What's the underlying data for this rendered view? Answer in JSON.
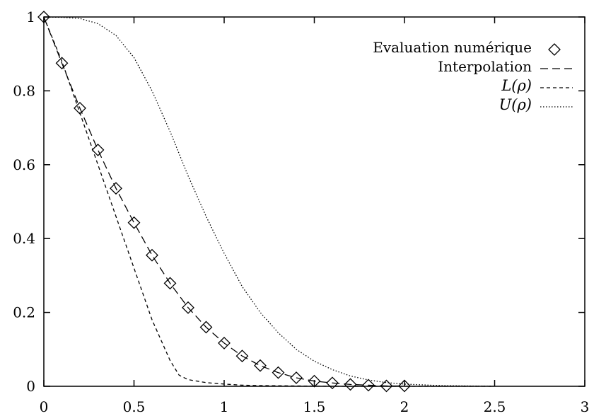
{
  "chart_data": {
    "type": "line",
    "title": "",
    "xlabel": "",
    "ylabel": "",
    "xlim": [
      0,
      3
    ],
    "ylim": [
      0,
      1
    ],
    "grid": false,
    "legend_position": "top-right",
    "x_ticks": [
      {
        "value": 0,
        "label": "0"
      },
      {
        "value": 0.5,
        "label": "0.5"
      },
      {
        "value": 1,
        "label": "1"
      },
      {
        "value": 1.5,
        "label": "1.5"
      },
      {
        "value": 2,
        "label": "2"
      },
      {
        "value": 2.5,
        "label": "2.5"
      },
      {
        "value": 3,
        "label": "3"
      }
    ],
    "y_ticks": [
      {
        "value": 0,
        "label": "0"
      },
      {
        "value": 0.2,
        "label": "0.2"
      },
      {
        "value": 0.4,
        "label": "0.4"
      },
      {
        "value": 0.6,
        "label": "0.6"
      },
      {
        "value": 0.8,
        "label": "0.8"
      },
      {
        "value": 1,
        "label": "1"
      }
    ],
    "series": [
      {
        "name": "Evaluation numérique",
        "style": "markers",
        "marker": "diamond",
        "x": [
          0,
          0.1,
          0.2,
          0.3,
          0.4,
          0.5,
          0.6,
          0.7,
          0.8,
          0.9,
          1.0,
          1.1,
          1.2,
          1.3,
          1.4,
          1.5,
          1.6,
          1.7,
          1.8,
          1.9,
          2.0
        ],
        "y": [
          1.0,
          0.875,
          0.753,
          0.64,
          0.536,
          0.443,
          0.355,
          0.279,
          0.213,
          0.16,
          0.117,
          0.082,
          0.056,
          0.037,
          0.023,
          0.014,
          0.009,
          0.005,
          0.003,
          0.001,
          0.001
        ]
      },
      {
        "name": "Interpolation",
        "style": "long-dash",
        "x": [
          0,
          0.1,
          0.2,
          0.3,
          0.4,
          0.5,
          0.6,
          0.7,
          0.8,
          0.9,
          1.0,
          1.1,
          1.2,
          1.3,
          1.4,
          1.5,
          1.6,
          1.7,
          1.8,
          1.9,
          2.0
        ],
        "y": [
          1.0,
          0.875,
          0.753,
          0.64,
          0.536,
          0.443,
          0.355,
          0.279,
          0.213,
          0.16,
          0.117,
          0.082,
          0.056,
          0.037,
          0.023,
          0.014,
          0.009,
          0.005,
          0.003,
          0.001,
          0.001
        ]
      },
      {
        "name": "L(ρ)",
        "style": "short-dash",
        "x": [
          0,
          0.1,
          0.2,
          0.3,
          0.4,
          0.5,
          0.6,
          0.7,
          0.75,
          0.8,
          0.9,
          1.0,
          1.1,
          1.2,
          1.4,
          1.6,
          2.0,
          2.5
        ],
        "y": [
          1.0,
          0.88,
          0.74,
          0.6,
          0.46,
          0.32,
          0.18,
          0.07,
          0.03,
          0.018,
          0.01,
          0.006,
          0.003,
          0.002,
          0.001,
          0.0,
          0.0,
          0.0
        ]
      },
      {
        "name": "U(ρ)",
        "style": "dotted",
        "x": [
          0,
          0.1,
          0.2,
          0.3,
          0.4,
          0.5,
          0.6,
          0.7,
          0.8,
          0.9,
          1.0,
          1.1,
          1.2,
          1.3,
          1.4,
          1.5,
          1.6,
          1.7,
          1.8,
          1.9,
          2.0,
          2.2,
          2.4,
          2.5
        ],
        "y": [
          1.0,
          0.999,
          0.996,
          0.982,
          0.95,
          0.89,
          0.8,
          0.69,
          0.57,
          0.46,
          0.36,
          0.27,
          0.2,
          0.145,
          0.1,
          0.068,
          0.045,
          0.028,
          0.017,
          0.01,
          0.006,
          0.002,
          0.0005,
          0.0
        ]
      }
    ]
  }
}
